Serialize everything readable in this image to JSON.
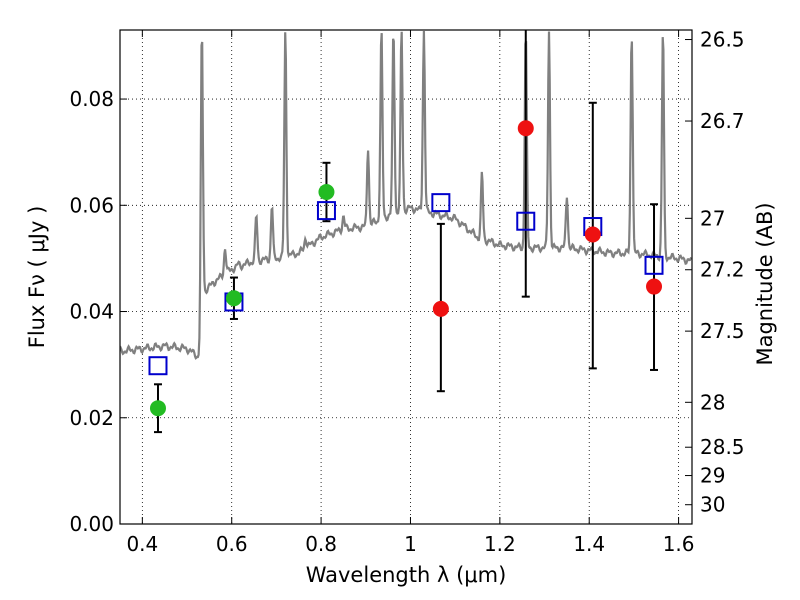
{
  "chart_data": {
    "type": "scatter",
    "title": "",
    "xlabel": "Wavelength  λ (μm)",
    "ylabel": "Flux  Fν  ( μJy )",
    "y2label": "Magnitude (AB)",
    "xlim": [
      0.35,
      1.63
    ],
    "ylim": [
      0.0,
      0.093
    ],
    "grid": true,
    "x_ticks": [
      {
        "value": 0.4,
        "label": "0.4"
      },
      {
        "value": 0.6,
        "label": "0.6"
      },
      {
        "value": 0.8,
        "label": "0.8"
      },
      {
        "value": 1.0,
        "label": "1"
      },
      {
        "value": 1.2,
        "label": "1.2"
      },
      {
        "value": 1.4,
        "label": "1.4"
      },
      {
        "value": 1.6,
        "label": "1.6"
      }
    ],
    "y_ticks": [
      {
        "value": 0.0,
        "label": "0.00"
      },
      {
        "value": 0.02,
        "label": "0.02"
      },
      {
        "value": 0.04,
        "label": "0.04"
      },
      {
        "value": 0.06,
        "label": "0.06"
      },
      {
        "value": 0.08,
        "label": "0.08"
      }
    ],
    "y2_ticks": [
      {
        "mag": 26.5,
        "label": "26.5"
      },
      {
        "mag": 26.7,
        "label": "26.7"
      },
      {
        "mag": 27.0,
        "label": "27"
      },
      {
        "mag": 27.2,
        "label": "27.2"
      },
      {
        "mag": 27.5,
        "label": "27.5"
      },
      {
        "mag": 28.0,
        "label": "28"
      },
      {
        "mag": 28.5,
        "label": "28.5"
      },
      {
        "mag": 29.0,
        "label": "29"
      },
      {
        "mag": 30.0,
        "label": "30"
      }
    ],
    "series": [
      {
        "name": "template spectrum",
        "kind": "line",
        "color": "#808080",
        "continuum": [
          [
            0.35,
            0.0325
          ],
          [
            0.4,
            0.033
          ],
          [
            0.45,
            0.0335
          ],
          [
            0.5,
            0.033
          ],
          [
            0.525,
            0.0315
          ],
          [
            0.532,
            0.0325
          ],
          [
            0.536,
            0.0435
          ],
          [
            0.56,
            0.0455
          ],
          [
            0.6,
            0.048
          ],
          [
            0.65,
            0.0495
          ],
          [
            0.7,
            0.05
          ],
          [
            0.75,
            0.051
          ],
          [
            0.8,
            0.054
          ],
          [
            0.85,
            0.0555
          ],
          [
            0.9,
            0.056
          ],
          [
            0.95,
            0.058
          ],
          [
            1.0,
            0.0595
          ],
          [
            1.05,
            0.0585
          ],
          [
            1.1,
            0.0575
          ],
          [
            1.15,
            0.054
          ],
          [
            1.2,
            0.0525
          ],
          [
            1.25,
            0.052
          ],
          [
            1.3,
            0.052
          ],
          [
            1.35,
            0.052
          ],
          [
            1.4,
            0.0515
          ],
          [
            1.45,
            0.051
          ],
          [
            1.5,
            0.051
          ],
          [
            1.55,
            0.0505
          ],
          [
            1.6,
            0.05
          ],
          [
            1.63,
            0.0495
          ]
        ],
        "emission_lines": [
          [
            0.533,
            0.093
          ],
          [
            0.585,
            0.052
          ],
          [
            0.615,
            0.049
          ],
          [
            0.655,
            0.058
          ],
          [
            0.69,
            0.06
          ],
          [
            0.72,
            0.093
          ],
          [
            0.765,
            0.054
          ],
          [
            0.85,
            0.058
          ],
          [
            0.905,
            0.071
          ],
          [
            0.935,
            0.093
          ],
          [
            0.962,
            0.093
          ],
          [
            0.98,
            0.093
          ],
          [
            1.03,
            0.093
          ],
          [
            1.16,
            0.066
          ],
          [
            1.258,
            0.093
          ],
          [
            1.31,
            0.093
          ],
          [
            1.35,
            0.062
          ],
          [
            1.495,
            0.093
          ],
          [
            1.565,
            0.093
          ]
        ]
      },
      {
        "name": "green points",
        "kind": "points-errorbar",
        "color": "#22bb22",
        "points": [
          {
            "x": 0.435,
            "y": 0.0218,
            "err_low": 0.0173,
            "err_high": 0.0263
          },
          {
            "x": 0.605,
            "y": 0.0425,
            "err_low": 0.0386,
            "err_high": 0.0464
          },
          {
            "x": 0.812,
            "y": 0.0625,
            "err_low": 0.057,
            "err_high": 0.068
          }
        ]
      },
      {
        "name": "red points",
        "kind": "points-errorbar",
        "color": "#ee1111",
        "points": [
          {
            "x": 1.068,
            "y": 0.0405,
            "err_low": 0.025,
            "err_high": 0.0565
          },
          {
            "x": 1.258,
            "y": 0.0745,
            "err_low": 0.0428,
            "err_high": 0.093
          },
          {
            "x": 1.408,
            "y": 0.0545,
            "err_low": 0.0293,
            "err_high": 0.0793
          },
          {
            "x": 1.545,
            "y": 0.0447,
            "err_low": 0.029,
            "err_high": 0.0602
          }
        ]
      },
      {
        "name": "blue squares",
        "kind": "open-squares",
        "color": "#0000cc",
        "points": [
          {
            "x": 0.435,
            "y": 0.0298
          },
          {
            "x": 0.605,
            "y": 0.0418
          },
          {
            "x": 0.812,
            "y": 0.059
          },
          {
            "x": 1.068,
            "y": 0.0605
          },
          {
            "x": 1.258,
            "y": 0.057
          },
          {
            "x": 1.408,
            "y": 0.056
          },
          {
            "x": 1.545,
            "y": 0.0487
          }
        ]
      }
    ]
  }
}
